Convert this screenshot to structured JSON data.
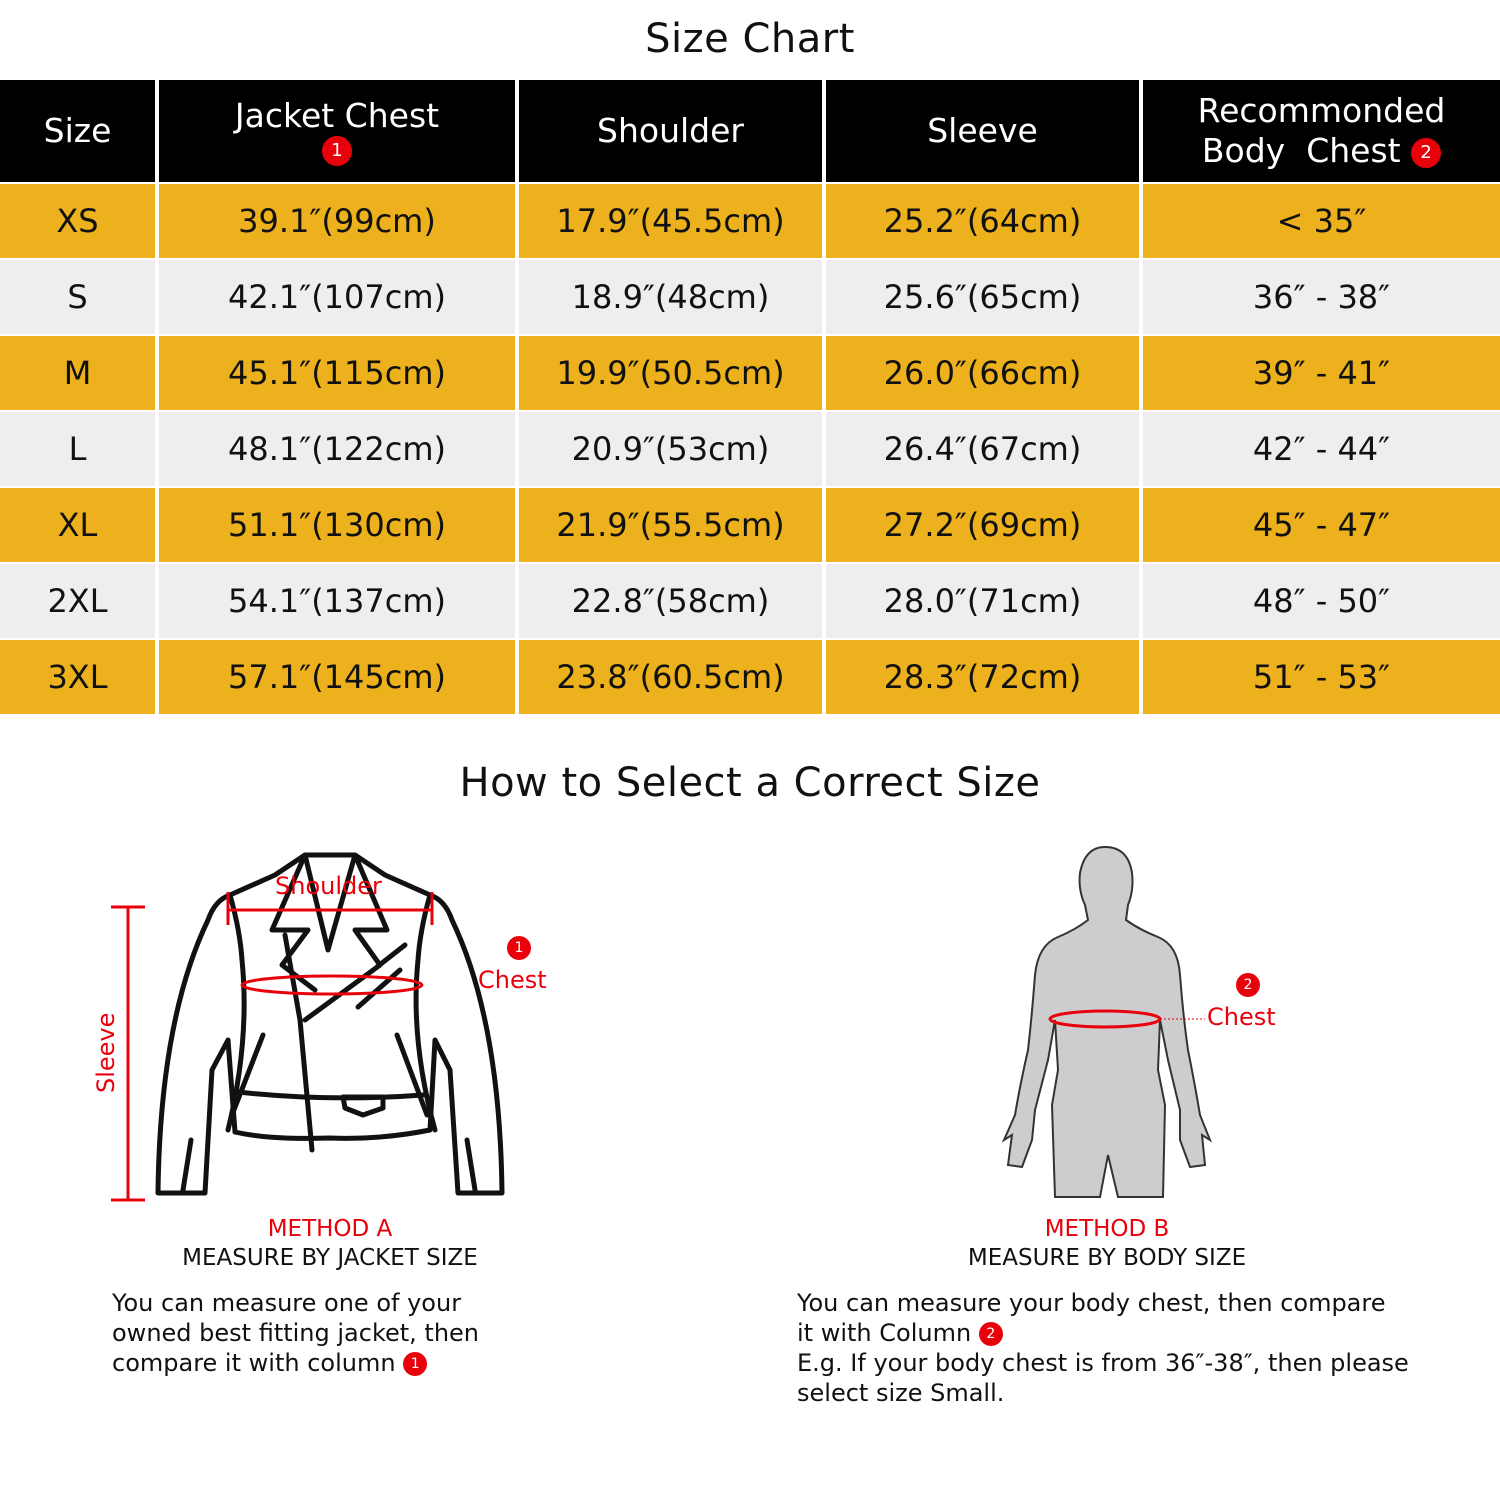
{
  "title": "Size Chart",
  "headers": [
    "Size",
    "Jacket Chest",
    "Shoulder",
    "Sleeve",
    "Recommonded",
    "Body  Chest"
  ],
  "badges": {
    "one": "1",
    "two": "2"
  },
  "rows": [
    [
      "XS",
      "39.1″(99cm)",
      "17.9″(45.5cm)",
      "25.2″(64cm)",
      "< 35″"
    ],
    [
      "S",
      "42.1″(107cm)",
      "18.9″(48cm)",
      "25.6″(65cm)",
      "36″ - 38″"
    ],
    [
      "M",
      "45.1″(115cm)",
      "19.9″(50.5cm)",
      "26.0″(66cm)",
      "39″ - 41″"
    ],
    [
      "L",
      "48.1″(122cm)",
      "20.9″(53cm)",
      "26.4″(67cm)",
      "42″ - 44″"
    ],
    [
      "XL",
      "51.1″(130cm)",
      "21.9″(55.5cm)",
      "27.2″(69cm)",
      "45″ - 47″"
    ],
    [
      "2XL",
      "54.1″(137cm)",
      "22.8″(58cm)",
      "28.0″(71cm)",
      "48″ - 50″"
    ],
    [
      "3XL",
      "57.1″(145cm)",
      "23.8″(60.5cm)",
      "28.3″(72cm)",
      "51″ - 53″"
    ]
  ],
  "colors": {
    "header": "#000000",
    "odd_row": "#ECB11C",
    "even_row": "#EEEEEE",
    "accent": "#E8000B"
  },
  "guide": {
    "title": "How to Select a Correct Size",
    "jacket_labels": {
      "shoulder": "Shoulder",
      "sleeve": "Sleeve",
      "chest": "Chest"
    },
    "body_labels": {
      "chest": "Chest"
    },
    "method_a": {
      "label": "METHOD A",
      "subtitle": "MEASURE BY JACKET SIZE",
      "text1": "You can measure one of your",
      "text2": "owned best fitting jacket, then",
      "text3": "compare it with column"
    },
    "method_b": {
      "label": "METHOD B",
      "subtitle": "MEASURE BY BODY SIZE",
      "text1": "You can measure your body chest, then compare",
      "text2": "it with Column",
      "text3": "E.g. If your body chest is from 36″-38″, then please",
      "text4": "select size Small."
    }
  }
}
